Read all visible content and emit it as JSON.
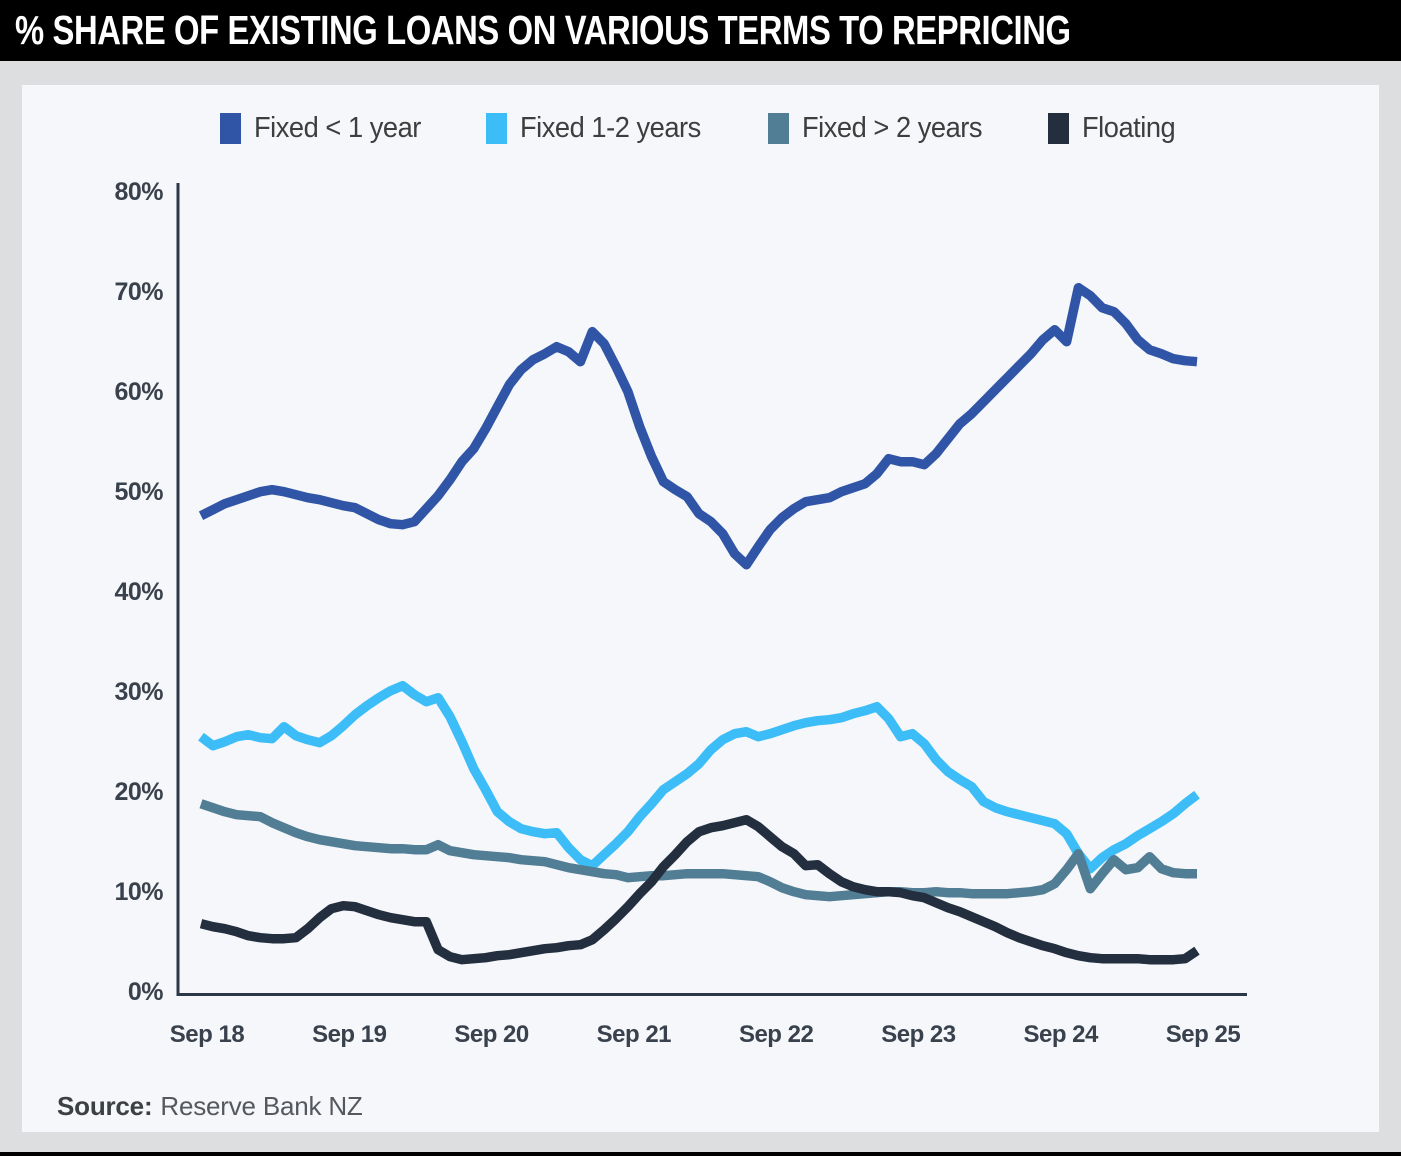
{
  "header": {
    "title": "% SHARE OF EXISTING LOANS ON VARIOUS TERMS TO REPRICING"
  },
  "source": {
    "label": "Source:",
    "value": "Reserve Bank NZ"
  },
  "colors": {
    "header_bg": "#000000",
    "page_bg": "#dcdee0",
    "panel_bg": "#f5f7fa",
    "axis": "#2c3748",
    "tick_text": "#39414d",
    "legend_text": "#3e3e3e"
  },
  "chart_data": {
    "type": "line",
    "title": "% share of existing loans on various terms to repricing",
    "x_unit": "monthly, Sep 2018 to Sep 2025",
    "x_tick_labels": [
      "Sep 18",
      "Sep 19",
      "Sep 20",
      "Sep 21",
      "Sep 22",
      "Sep 23",
      "Sep 24",
      "Sep 25"
    ],
    "y_ticks": [
      0,
      10,
      20,
      30,
      40,
      50,
      60,
      70,
      80
    ],
    "y_tick_suffix": "%",
    "ylim": [
      0,
      80
    ],
    "grid": false,
    "legend_position": "top",
    "series": [
      {
        "name": "Fixed < 1 year",
        "color": "#3155a6",
        "values": [
          47.6,
          48.2,
          48.8,
          49.2,
          49.6,
          50.0,
          50.2,
          50.0,
          49.7,
          49.4,
          49.2,
          48.9,
          48.6,
          48.4,
          47.8,
          47.2,
          46.8,
          46.7,
          47.0,
          48.3,
          49.6,
          51.2,
          53.0,
          54.3,
          56.3,
          58.5,
          60.7,
          62.2,
          63.2,
          63.8,
          64.5,
          64.0,
          63.0,
          66.0,
          64.8,
          62.5,
          60.0,
          56.5,
          53.5,
          51.0,
          50.2,
          49.5,
          47.8,
          47.0,
          45.8,
          43.8,
          42.7,
          44.5,
          46.2,
          47.4,
          48.3,
          49.0,
          49.2,
          49.4,
          50.0,
          50.4,
          50.8,
          51.8,
          53.3,
          53.0,
          53.0,
          52.7,
          53.8,
          55.3,
          56.8,
          57.8,
          59.0,
          60.2,
          61.4,
          62.6,
          63.8,
          65.2,
          66.2,
          65.0,
          70.4,
          69.6,
          68.4,
          68.0,
          66.8,
          65.2,
          64.2,
          63.8,
          63.3,
          63.1,
          63.0
        ]
      },
      {
        "name": "Fixed 1-2 years",
        "color": "#3dbdf7",
        "values": [
          25.5,
          24.6,
          25.0,
          25.5,
          25.7,
          25.4,
          25.3,
          26.5,
          25.6,
          25.2,
          24.9,
          25.6,
          26.6,
          27.7,
          28.6,
          29.4,
          30.1,
          30.6,
          29.7,
          29.0,
          29.4,
          27.5,
          25.0,
          22.3,
          20.2,
          18.0,
          17.0,
          16.3,
          16.0,
          15.8,
          15.9,
          14.4,
          13.2,
          12.6,
          13.7,
          14.8,
          16.0,
          17.5,
          18.8,
          20.2,
          21.0,
          21.8,
          22.8,
          24.2,
          25.2,
          25.8,
          26.0,
          25.5,
          25.8,
          26.2,
          26.6,
          26.9,
          27.1,
          27.2,
          27.4,
          27.8,
          28.1,
          28.5,
          27.3,
          25.5,
          25.8,
          24.8,
          23.2,
          22.0,
          21.2,
          20.5,
          19.0,
          18.4,
          18.0,
          17.7,
          17.4,
          17.1,
          16.8,
          15.8,
          13.8,
          12.3,
          13.4,
          14.2,
          14.8,
          15.6,
          16.3,
          17.0,
          17.8,
          18.8,
          19.7
        ]
      },
      {
        "name": "Fixed > 2 years",
        "color": "#527e95",
        "values": [
          18.8,
          18.4,
          18.0,
          17.7,
          17.6,
          17.5,
          16.9,
          16.4,
          15.9,
          15.5,
          15.2,
          15.0,
          14.8,
          14.6,
          14.5,
          14.4,
          14.3,
          14.3,
          14.2,
          14.2,
          14.7,
          14.1,
          13.9,
          13.7,
          13.6,
          13.5,
          13.4,
          13.2,
          13.1,
          13.0,
          12.7,
          12.4,
          12.2,
          12.0,
          11.8,
          11.7,
          11.4,
          11.5,
          11.6,
          11.6,
          11.7,
          11.8,
          11.8,
          11.8,
          11.8,
          11.7,
          11.6,
          11.5,
          11.0,
          10.4,
          10.0,
          9.7,
          9.6,
          9.5,
          9.6,
          9.7,
          9.8,
          9.9,
          10.0,
          10.0,
          9.9,
          9.9,
          10.0,
          9.9,
          9.9,
          9.8,
          9.8,
          9.8,
          9.8,
          9.9,
          10.0,
          10.2,
          10.8,
          12.2,
          13.8,
          10.3,
          11.8,
          13.2,
          12.2,
          12.4,
          13.5,
          12.3,
          11.9,
          11.8,
          11.8
        ]
      },
      {
        "name": "Floating",
        "color": "#232e3f",
        "values": [
          6.8,
          6.5,
          6.3,
          6.0,
          5.6,
          5.4,
          5.3,
          5.3,
          5.4,
          6.3,
          7.4,
          8.3,
          8.6,
          8.5,
          8.1,
          7.7,
          7.4,
          7.2,
          7.0,
          7.0,
          4.2,
          3.5,
          3.2,
          3.3,
          3.4,
          3.6,
          3.7,
          3.9,
          4.1,
          4.3,
          4.4,
          4.6,
          4.7,
          5.2,
          6.2,
          7.3,
          8.5,
          9.8,
          11.0,
          12.5,
          13.7,
          15.0,
          16.0,
          16.4,
          16.6,
          16.9,
          17.2,
          16.5,
          15.5,
          14.5,
          13.8,
          12.6,
          12.7,
          11.8,
          11.0,
          10.5,
          10.2,
          10.0,
          10.0,
          9.9,
          9.6,
          9.4,
          8.9,
          8.4,
          8.0,
          7.5,
          7.0,
          6.5,
          5.9,
          5.4,
          5.0,
          4.6,
          4.3,
          3.9,
          3.6,
          3.4,
          3.3,
          3.3,
          3.3,
          3.3,
          3.2,
          3.2,
          3.2,
          3.3,
          4.1
        ]
      }
    ]
  }
}
